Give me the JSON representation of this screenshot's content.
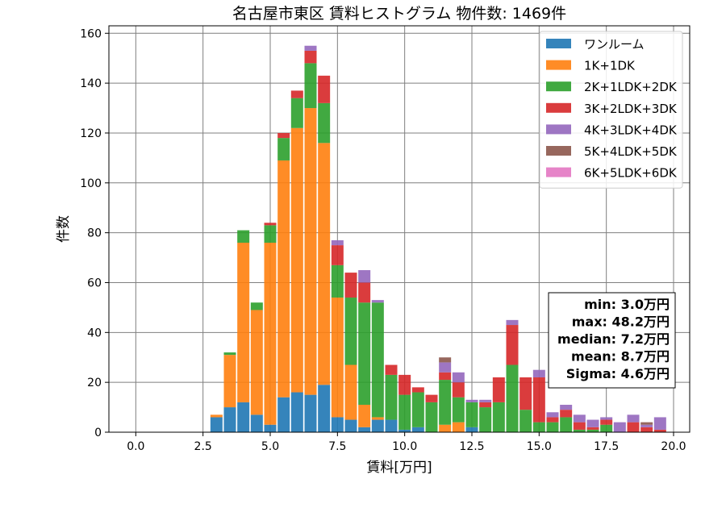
{
  "chart_data": {
    "type": "bar",
    "stacked": true,
    "title": "名古屋市東区 賃料ヒストグラム  物件数: 1469件",
    "xlabel": "賃料[万円]",
    "ylabel": "件数",
    "xlim": [
      -1.0,
      20.6
    ],
    "ylim": [
      0,
      163
    ],
    "xticks": [
      0.0,
      2.5,
      5.0,
      7.5,
      10.0,
      12.5,
      15.0,
      17.5,
      20.0
    ],
    "xtick_labels": [
      "0.0",
      "2.5",
      "5.0",
      "7.5",
      "10.0",
      "12.5",
      "15.0",
      "17.5",
      "20.0"
    ],
    "yticks": [
      0,
      20,
      40,
      60,
      80,
      100,
      120,
      140,
      160
    ],
    "ytick_labels": [
      "0",
      "20",
      "40",
      "60",
      "80",
      "100",
      "120",
      "140",
      "160"
    ],
    "grid": true,
    "legend_position": "top-right",
    "bin_width": 0.5,
    "x": [
      3.0,
      3.5,
      4.0,
      4.5,
      5.0,
      5.5,
      6.0,
      6.5,
      7.0,
      7.5,
      8.0,
      8.5,
      9.0,
      9.5,
      10.0,
      10.5,
      11.0,
      11.5,
      12.0,
      12.5,
      13.0,
      13.5,
      14.0,
      14.5,
      15.0,
      15.5,
      16.0,
      16.5,
      17.0,
      17.5,
      18.0,
      18.5,
      19.0,
      19.5
    ],
    "series": [
      {
        "name": "ワンルーム",
        "color": "#1f77b4",
        "values": [
          6,
          10,
          12,
          7,
          3,
          14,
          16,
          15,
          19,
          6,
          5,
          2,
          5,
          5,
          1,
          2,
          0,
          0,
          0,
          2,
          0,
          0,
          0,
          0,
          0,
          0,
          0,
          0,
          0,
          0,
          0,
          0,
          0,
          0
        ]
      },
      {
        "name": "1K+1DK",
        "color": "#ff7f0e",
        "values": [
          1,
          21,
          64,
          42,
          73,
          95,
          106,
          115,
          97,
          48,
          22,
          9,
          1,
          0,
          0,
          0,
          0,
          3,
          4,
          0,
          0,
          0,
          0,
          0,
          0,
          0,
          0,
          0,
          0,
          0,
          0,
          0,
          0,
          0
        ]
      },
      {
        "name": "2K+1LDK+2DK",
        "color": "#2ca02c",
        "values": [
          0,
          1,
          5,
          3,
          7,
          9,
          12,
          18,
          16,
          13,
          27,
          41,
          46,
          18,
          14,
          14,
          12,
          18,
          10,
          10,
          10,
          12,
          27,
          9,
          4,
          4,
          6,
          1,
          1,
          3,
          0,
          0,
          0,
          0
        ]
      },
      {
        "name": "3K+2LDK+3DK",
        "color": "#d62728",
        "values": [
          0,
          0,
          0,
          0,
          1,
          2,
          3,
          5,
          11,
          8,
          10,
          8,
          0,
          4,
          8,
          2,
          3,
          3,
          6,
          0,
          2,
          10,
          16,
          13,
          18,
          2,
          3,
          3,
          1,
          2,
          0,
          4,
          2,
          1
        ]
      },
      {
        "name": "4K+3LDK+4DK",
        "color": "#9467bd",
        "values": [
          0,
          0,
          0,
          0,
          0,
          0,
          0,
          2,
          0,
          2,
          0,
          5,
          1,
          0,
          0,
          0,
          0,
          4,
          4,
          1,
          1,
          0,
          2,
          0,
          3,
          2,
          2,
          3,
          3,
          1,
          4,
          3,
          1,
          5
        ]
      },
      {
        "name": "5K+4LDK+5DK",
        "color": "#8c564b",
        "values": [
          0,
          0,
          0,
          0,
          0,
          0,
          0,
          0,
          0,
          0,
          0,
          0,
          0,
          0,
          0,
          0,
          0,
          2,
          0,
          0,
          0,
          0,
          0,
          0,
          0,
          0,
          0,
          0,
          0,
          0,
          0,
          0,
          1,
          0
        ]
      },
      {
        "name": "6K+5LDK+6DK",
        "color": "#e377c2",
        "values": [
          0,
          0,
          0,
          0,
          0,
          0,
          0,
          0,
          0,
          0,
          0,
          0,
          0,
          0,
          0,
          0,
          0,
          0,
          0,
          0,
          0,
          0,
          0,
          0,
          0,
          0,
          0,
          0,
          0,
          0,
          0,
          0,
          0,
          0
        ]
      }
    ],
    "stats": [
      "min: 3.0万円",
      "max: 48.2万円",
      "median: 7.2万円",
      "mean: 8.7万円",
      "Sigma: 4.6万円"
    ]
  }
}
